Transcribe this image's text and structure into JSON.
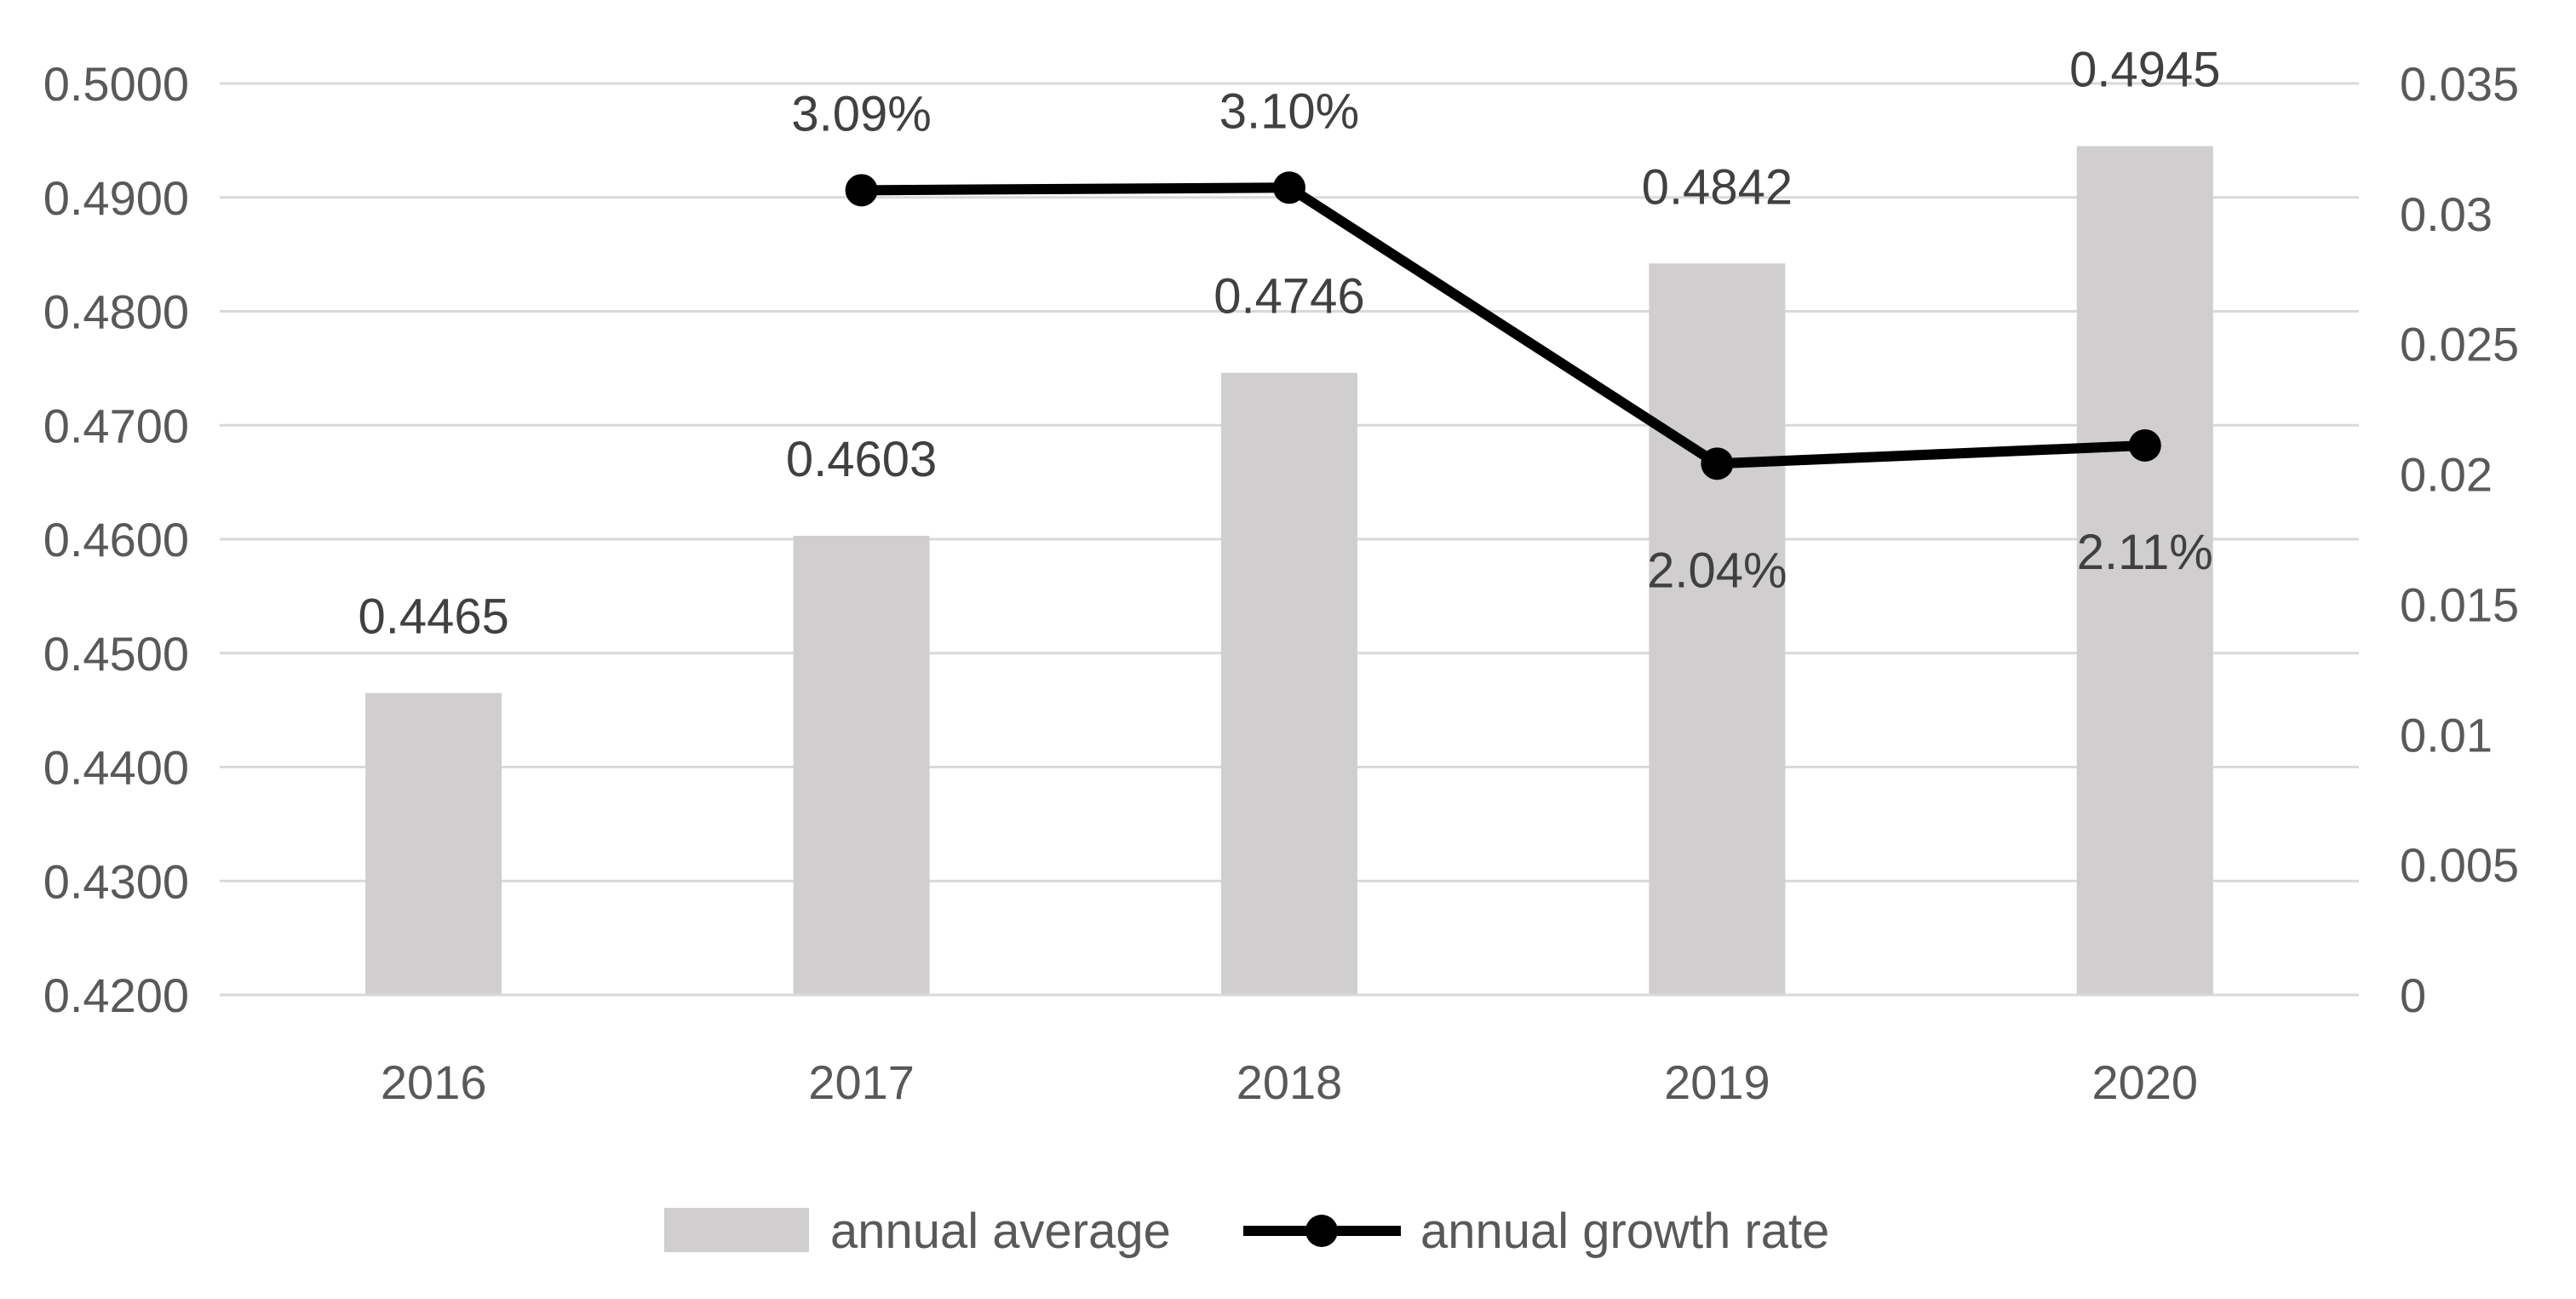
{
  "chart_data": {
    "type": "bar",
    "title": "",
    "xlabel": "",
    "ylabel": "",
    "categories": [
      "2016",
      "2017",
      "2018",
      "2019",
      "2020"
    ],
    "series": [
      {
        "name": "annual average",
        "type": "bar",
        "axis": "left",
        "color": "#d0cece",
        "values": [
          0.4465,
          0.4603,
          0.4746,
          0.4842,
          0.4945
        ],
        "labels": [
          "0.4465",
          "0.4603",
          "0.4746",
          "0.4842",
          "0.4945"
        ]
      },
      {
        "name": "annual growth rate",
        "type": "line",
        "axis": "right",
        "color": "#000000",
        "values": [
          null,
          0.0309,
          0.031,
          0.0204,
          0.0211
        ],
        "labels": [
          "",
          "3.09%",
          "3.10%",
          "2.04%",
          "2.11%"
        ]
      }
    ],
    "ylim_left": [
      0.42,
      0.5
    ],
    "ytick_left": [
      "0.4200",
      "0.4300",
      "0.4400",
      "0.4500",
      "0.4600",
      "0.4700",
      "0.4800",
      "0.4900",
      "0.5000"
    ],
    "ylim_right": [
      0,
      0.035
    ],
    "ytick_right": [
      "0",
      "0.005",
      "0.01",
      "0.015",
      "0.02",
      "0.025",
      "0.03",
      "0.035"
    ],
    "grid": true,
    "legend_position": "bottom"
  }
}
